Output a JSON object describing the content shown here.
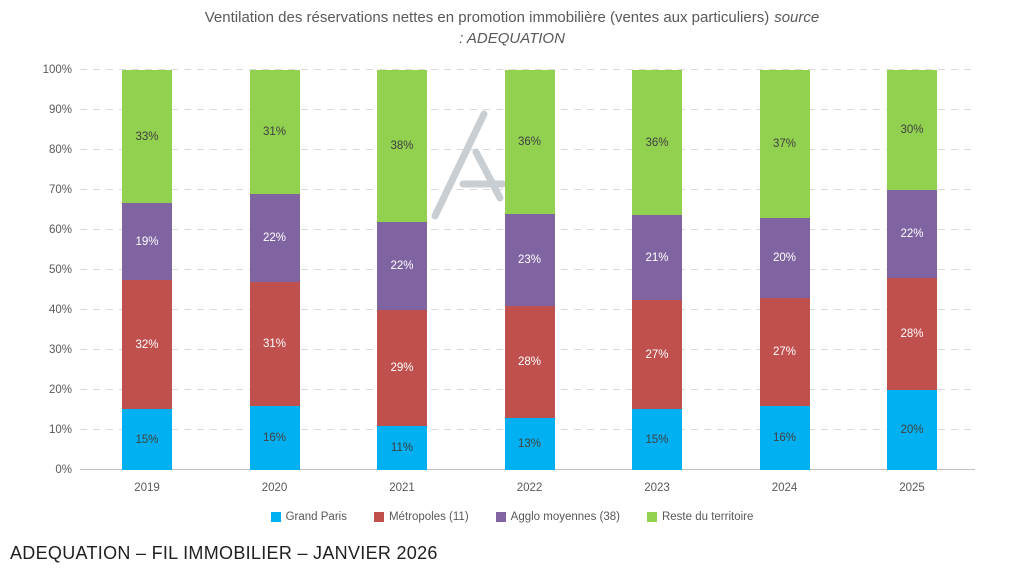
{
  "title": {
    "main": "Ventilation des réservations nettes en promotion immobilière (ventes aux particuliers)",
    "source_word": "source",
    "source_line2": ": ADEQUATION"
  },
  "chart_data": {
    "type": "bar",
    "stacked": true,
    "normalized_to_100_percent": true,
    "categories": [
      "2019",
      "2020",
      "2021",
      "2022",
      "2023",
      "2024",
      "2025"
    ],
    "series": [
      {
        "name": "Grand Paris",
        "color": "#00B0F0",
        "label_color": "#404040",
        "values": [
          15,
          16,
          11,
          13,
          15,
          16,
          20
        ]
      },
      {
        "name": "Métropoles (11)",
        "color": "#C0504D",
        "label_color": "#FFFFFF",
        "values": [
          32,
          31,
          29,
          28,
          27,
          27,
          28
        ]
      },
      {
        "name": "Agglo moyennes (38)",
        "color": "#8064A2",
        "label_color": "#FFFFFF",
        "values": [
          19,
          22,
          22,
          23,
          21,
          20,
          22
        ]
      },
      {
        "name": "Reste du territoire",
        "color": "#92D050",
        "label_color": "#404040",
        "values": [
          33,
          31,
          38,
          36,
          36,
          37,
          30
        ]
      }
    ],
    "value_suffix": "%",
    "y_ticks": [
      "0%",
      "10%",
      "20%",
      "30%",
      "40%",
      "50%",
      "60%",
      "70%",
      "80%",
      "90%",
      "100%"
    ],
    "ylim": [
      0,
      100
    ],
    "grid": "dashed horizontal",
    "legend_position": "bottom"
  },
  "watermark": {
    "icon": "adequation-a-logo",
    "color": "#C9CED3"
  },
  "footer": {
    "caption": "ADEQUATION – FIL IMMOBILIER – JANVIER 2026"
  },
  "ui_colors": {
    "background": "#FFFFFF",
    "title_text": "#595959",
    "axis_text": "#595959",
    "gridline": "#D9D9D9",
    "baseline": "#C3C3C3",
    "caption_text": "#1F1F1F"
  }
}
